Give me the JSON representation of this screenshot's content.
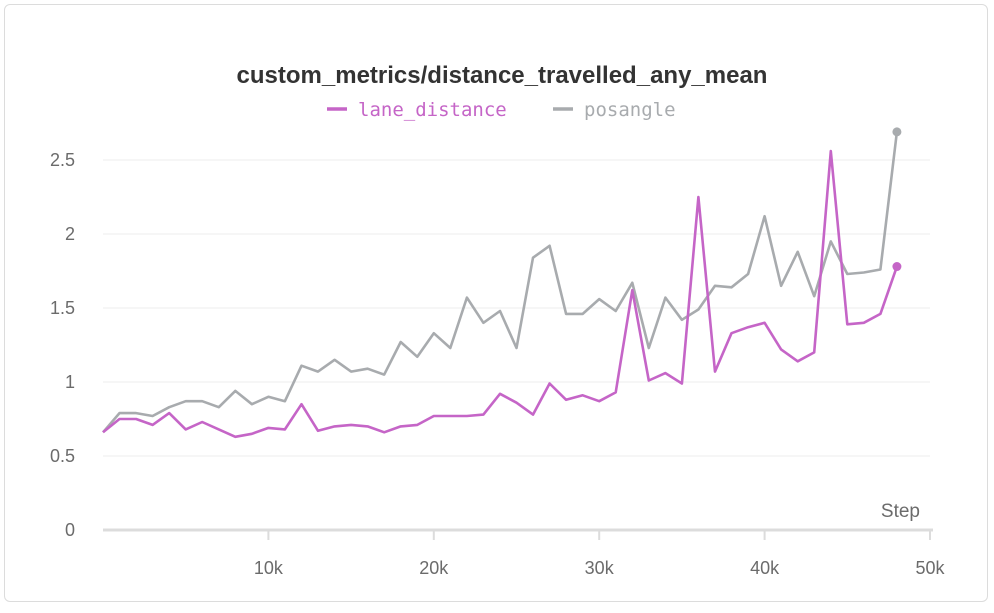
{
  "chart_data": {
    "type": "line",
    "title": "custom_metrics/distance_travelled_any_mean",
    "xlabel": "Step",
    "ylabel": "",
    "xlim": [
      0,
      50000
    ],
    "ylim": [
      0,
      2.7
    ],
    "xticks": [
      10000,
      20000,
      30000,
      40000,
      50000
    ],
    "xtick_labels": [
      "10k",
      "20k",
      "30k",
      "40k",
      "50k"
    ],
    "yticks": [
      0,
      0.5,
      1,
      1.5,
      2,
      2.5
    ],
    "ytick_labels": [
      "0",
      "0.5",
      "1",
      "1.5",
      "2",
      "2.5"
    ],
    "grid": true,
    "legend_position": "top-center",
    "x": [
      0,
      1000,
      2000,
      3000,
      4000,
      5000,
      6000,
      7000,
      8000,
      9000,
      10000,
      11000,
      12000,
      13000,
      14000,
      15000,
      16000,
      17000,
      18000,
      19000,
      20000,
      21000,
      22000,
      23000,
      24000,
      25000,
      26000,
      27000,
      28000,
      29000,
      30000,
      31000,
      32000,
      33000,
      34000,
      35000,
      36000,
      37000,
      38000,
      39000,
      40000,
      41000,
      42000,
      43000,
      44000,
      45000,
      46000,
      47000,
      48000,
      49000,
      50000
    ],
    "series": [
      {
        "name": "lane_distance",
        "color": "#c565c7",
        "values": [
          0.66,
          0.75,
          0.75,
          0.71,
          0.79,
          0.68,
          0.73,
          0.68,
          0.63,
          0.65,
          0.69,
          0.68,
          0.85,
          0.67,
          0.7,
          0.71,
          0.7,
          0.66,
          0.7,
          0.71,
          0.77,
          0.77,
          0.77,
          0.78,
          0.92,
          0.86,
          0.78,
          0.99,
          0.88,
          0.91,
          0.87,
          0.93,
          1.62,
          1.01,
          1.06,
          0.99,
          2.25,
          1.07,
          1.33,
          1.37,
          1.4,
          1.22,
          1.14,
          1.2,
          2.56,
          1.39,
          1.4,
          1.46,
          1.78,
          null,
          null
        ]
      },
      {
        "name": "posangle",
        "color": "#a8abae",
        "values": [
          0.66,
          0.79,
          0.79,
          0.77,
          0.83,
          0.87,
          0.87,
          0.83,
          0.94,
          0.85,
          0.9,
          0.87,
          1.11,
          1.07,
          1.15,
          1.07,
          1.09,
          1.05,
          1.27,
          1.17,
          1.33,
          1.23,
          1.57,
          1.4,
          1.48,
          1.23,
          1.84,
          1.92,
          1.46,
          1.46,
          1.56,
          1.48,
          1.67,
          1.23,
          1.57,
          1.42,
          1.49,
          1.65,
          1.64,
          1.73,
          2.12,
          1.65,
          1.88,
          1.58,
          1.95,
          1.73,
          1.74,
          1.76,
          2.69,
          null,
          null
        ]
      }
    ]
  }
}
